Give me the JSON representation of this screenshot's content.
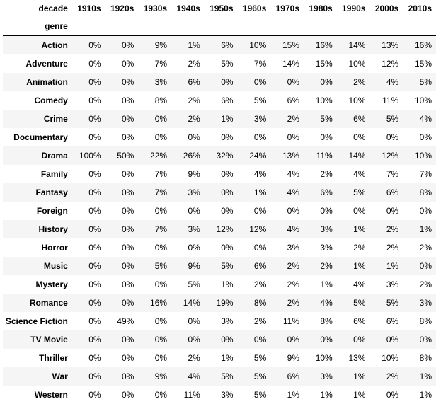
{
  "table": {
    "columns_label": "decade",
    "index_label": "genre",
    "columns": [
      "1910s",
      "1920s",
      "1930s",
      "1940s",
      "1950s",
      "1960s",
      "1970s",
      "1980s",
      "1990s",
      "2000s",
      "2010s"
    ],
    "rows": [
      {
        "genre": "Action",
        "values": [
          "0%",
          "0%",
          "9%",
          "1%",
          "6%",
          "10%",
          "15%",
          "16%",
          "14%",
          "13%",
          "16%"
        ]
      },
      {
        "genre": "Adventure",
        "values": [
          "0%",
          "0%",
          "7%",
          "2%",
          "5%",
          "7%",
          "14%",
          "15%",
          "10%",
          "12%",
          "15%"
        ]
      },
      {
        "genre": "Animation",
        "values": [
          "0%",
          "0%",
          "3%",
          "6%",
          "0%",
          "0%",
          "0%",
          "0%",
          "2%",
          "4%",
          "5%"
        ]
      },
      {
        "genre": "Comedy",
        "values": [
          "0%",
          "0%",
          "8%",
          "2%",
          "6%",
          "5%",
          "6%",
          "10%",
          "10%",
          "11%",
          "10%"
        ]
      },
      {
        "genre": "Crime",
        "values": [
          "0%",
          "0%",
          "0%",
          "2%",
          "1%",
          "3%",
          "2%",
          "5%",
          "6%",
          "5%",
          "4%"
        ]
      },
      {
        "genre": "Documentary",
        "values": [
          "0%",
          "0%",
          "0%",
          "0%",
          "0%",
          "0%",
          "0%",
          "0%",
          "0%",
          "0%",
          "0%"
        ]
      },
      {
        "genre": "Drama",
        "values": [
          "100%",
          "50%",
          "22%",
          "26%",
          "32%",
          "24%",
          "13%",
          "11%",
          "14%",
          "12%",
          "10%"
        ]
      },
      {
        "genre": "Family",
        "values": [
          "0%",
          "0%",
          "7%",
          "9%",
          "0%",
          "4%",
          "4%",
          "2%",
          "4%",
          "7%",
          "7%"
        ]
      },
      {
        "genre": "Fantasy",
        "values": [
          "0%",
          "0%",
          "7%",
          "3%",
          "0%",
          "1%",
          "4%",
          "6%",
          "5%",
          "6%",
          "8%"
        ]
      },
      {
        "genre": "Foreign",
        "values": [
          "0%",
          "0%",
          "0%",
          "0%",
          "0%",
          "0%",
          "0%",
          "0%",
          "0%",
          "0%",
          "0%"
        ]
      },
      {
        "genre": "History",
        "values": [
          "0%",
          "0%",
          "7%",
          "3%",
          "12%",
          "12%",
          "4%",
          "3%",
          "1%",
          "2%",
          "1%"
        ]
      },
      {
        "genre": "Horror",
        "values": [
          "0%",
          "0%",
          "0%",
          "0%",
          "0%",
          "0%",
          "3%",
          "3%",
          "2%",
          "2%",
          "2%"
        ]
      },
      {
        "genre": "Music",
        "values": [
          "0%",
          "0%",
          "5%",
          "9%",
          "5%",
          "6%",
          "2%",
          "2%",
          "1%",
          "1%",
          "0%"
        ]
      },
      {
        "genre": "Mystery",
        "values": [
          "0%",
          "0%",
          "0%",
          "5%",
          "1%",
          "2%",
          "2%",
          "1%",
          "4%",
          "3%",
          "2%"
        ]
      },
      {
        "genre": "Romance",
        "values": [
          "0%",
          "0%",
          "16%",
          "14%",
          "19%",
          "8%",
          "2%",
          "4%",
          "5%",
          "5%",
          "3%"
        ]
      },
      {
        "genre": "Science Fiction",
        "values": [
          "0%",
          "49%",
          "0%",
          "0%",
          "3%",
          "2%",
          "11%",
          "8%",
          "6%",
          "6%",
          "8%"
        ]
      },
      {
        "genre": "TV Movie",
        "values": [
          "0%",
          "0%",
          "0%",
          "0%",
          "0%",
          "0%",
          "0%",
          "0%",
          "0%",
          "0%",
          "0%"
        ]
      },
      {
        "genre": "Thriller",
        "values": [
          "0%",
          "0%",
          "0%",
          "2%",
          "1%",
          "5%",
          "9%",
          "10%",
          "13%",
          "10%",
          "8%"
        ]
      },
      {
        "genre": "War",
        "values": [
          "0%",
          "0%",
          "9%",
          "4%",
          "5%",
          "5%",
          "6%",
          "3%",
          "1%",
          "2%",
          "1%"
        ]
      },
      {
        "genre": "Western",
        "values": [
          "0%",
          "0%",
          "0%",
          "11%",
          "3%",
          "5%",
          "1%",
          "1%",
          "1%",
          "0%",
          "1%"
        ]
      }
    ]
  }
}
